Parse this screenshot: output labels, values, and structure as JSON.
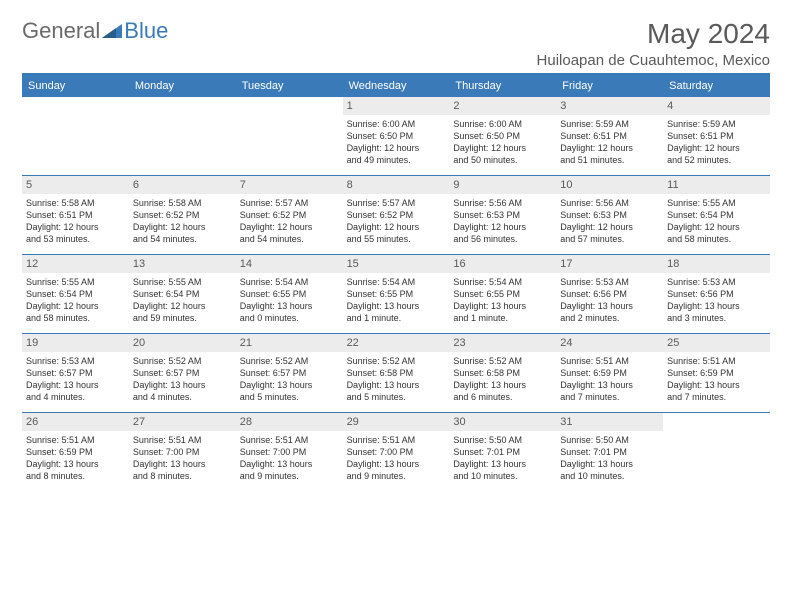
{
  "logo": {
    "text1": "General",
    "text2": "Blue"
  },
  "title": "May 2024",
  "location": "Huiloapan de Cuauhtemoc, Mexico",
  "colors": {
    "header_bg": "#3a7ab8",
    "header_text": "#ffffff",
    "daynum_bg": "#ececec",
    "text": "#333333",
    "rule": "#3a7ab8"
  },
  "day_labels": [
    "Sunday",
    "Monday",
    "Tuesday",
    "Wednesday",
    "Thursday",
    "Friday",
    "Saturday"
  ],
  "weeks": [
    [
      {
        "n": "",
        "sr": "",
        "ss": "",
        "dl1": "",
        "dl2": ""
      },
      {
        "n": "",
        "sr": "",
        "ss": "",
        "dl1": "",
        "dl2": ""
      },
      {
        "n": "",
        "sr": "",
        "ss": "",
        "dl1": "",
        "dl2": ""
      },
      {
        "n": "1",
        "sr": "Sunrise: 6:00 AM",
        "ss": "Sunset: 6:50 PM",
        "dl1": "Daylight: 12 hours",
        "dl2": "and 49 minutes."
      },
      {
        "n": "2",
        "sr": "Sunrise: 6:00 AM",
        "ss": "Sunset: 6:50 PM",
        "dl1": "Daylight: 12 hours",
        "dl2": "and 50 minutes."
      },
      {
        "n": "3",
        "sr": "Sunrise: 5:59 AM",
        "ss": "Sunset: 6:51 PM",
        "dl1": "Daylight: 12 hours",
        "dl2": "and 51 minutes."
      },
      {
        "n": "4",
        "sr": "Sunrise: 5:59 AM",
        "ss": "Sunset: 6:51 PM",
        "dl1": "Daylight: 12 hours",
        "dl2": "and 52 minutes."
      }
    ],
    [
      {
        "n": "5",
        "sr": "Sunrise: 5:58 AM",
        "ss": "Sunset: 6:51 PM",
        "dl1": "Daylight: 12 hours",
        "dl2": "and 53 minutes."
      },
      {
        "n": "6",
        "sr": "Sunrise: 5:58 AM",
        "ss": "Sunset: 6:52 PM",
        "dl1": "Daylight: 12 hours",
        "dl2": "and 54 minutes."
      },
      {
        "n": "7",
        "sr": "Sunrise: 5:57 AM",
        "ss": "Sunset: 6:52 PM",
        "dl1": "Daylight: 12 hours",
        "dl2": "and 54 minutes."
      },
      {
        "n": "8",
        "sr": "Sunrise: 5:57 AM",
        "ss": "Sunset: 6:52 PM",
        "dl1": "Daylight: 12 hours",
        "dl2": "and 55 minutes."
      },
      {
        "n": "9",
        "sr": "Sunrise: 5:56 AM",
        "ss": "Sunset: 6:53 PM",
        "dl1": "Daylight: 12 hours",
        "dl2": "and 56 minutes."
      },
      {
        "n": "10",
        "sr": "Sunrise: 5:56 AM",
        "ss": "Sunset: 6:53 PM",
        "dl1": "Daylight: 12 hours",
        "dl2": "and 57 minutes."
      },
      {
        "n": "11",
        "sr": "Sunrise: 5:55 AM",
        "ss": "Sunset: 6:54 PM",
        "dl1": "Daylight: 12 hours",
        "dl2": "and 58 minutes."
      }
    ],
    [
      {
        "n": "12",
        "sr": "Sunrise: 5:55 AM",
        "ss": "Sunset: 6:54 PM",
        "dl1": "Daylight: 12 hours",
        "dl2": "and 58 minutes."
      },
      {
        "n": "13",
        "sr": "Sunrise: 5:55 AM",
        "ss": "Sunset: 6:54 PM",
        "dl1": "Daylight: 12 hours",
        "dl2": "and 59 minutes."
      },
      {
        "n": "14",
        "sr": "Sunrise: 5:54 AM",
        "ss": "Sunset: 6:55 PM",
        "dl1": "Daylight: 13 hours",
        "dl2": "and 0 minutes."
      },
      {
        "n": "15",
        "sr": "Sunrise: 5:54 AM",
        "ss": "Sunset: 6:55 PM",
        "dl1": "Daylight: 13 hours",
        "dl2": "and 1 minute."
      },
      {
        "n": "16",
        "sr": "Sunrise: 5:54 AM",
        "ss": "Sunset: 6:55 PM",
        "dl1": "Daylight: 13 hours",
        "dl2": "and 1 minute."
      },
      {
        "n": "17",
        "sr": "Sunrise: 5:53 AM",
        "ss": "Sunset: 6:56 PM",
        "dl1": "Daylight: 13 hours",
        "dl2": "and 2 minutes."
      },
      {
        "n": "18",
        "sr": "Sunrise: 5:53 AM",
        "ss": "Sunset: 6:56 PM",
        "dl1": "Daylight: 13 hours",
        "dl2": "and 3 minutes."
      }
    ],
    [
      {
        "n": "19",
        "sr": "Sunrise: 5:53 AM",
        "ss": "Sunset: 6:57 PM",
        "dl1": "Daylight: 13 hours",
        "dl2": "and 4 minutes."
      },
      {
        "n": "20",
        "sr": "Sunrise: 5:52 AM",
        "ss": "Sunset: 6:57 PM",
        "dl1": "Daylight: 13 hours",
        "dl2": "and 4 minutes."
      },
      {
        "n": "21",
        "sr": "Sunrise: 5:52 AM",
        "ss": "Sunset: 6:57 PM",
        "dl1": "Daylight: 13 hours",
        "dl2": "and 5 minutes."
      },
      {
        "n": "22",
        "sr": "Sunrise: 5:52 AM",
        "ss": "Sunset: 6:58 PM",
        "dl1": "Daylight: 13 hours",
        "dl2": "and 5 minutes."
      },
      {
        "n": "23",
        "sr": "Sunrise: 5:52 AM",
        "ss": "Sunset: 6:58 PM",
        "dl1": "Daylight: 13 hours",
        "dl2": "and 6 minutes."
      },
      {
        "n": "24",
        "sr": "Sunrise: 5:51 AM",
        "ss": "Sunset: 6:59 PM",
        "dl1": "Daylight: 13 hours",
        "dl2": "and 7 minutes."
      },
      {
        "n": "25",
        "sr": "Sunrise: 5:51 AM",
        "ss": "Sunset: 6:59 PM",
        "dl1": "Daylight: 13 hours",
        "dl2": "and 7 minutes."
      }
    ],
    [
      {
        "n": "26",
        "sr": "Sunrise: 5:51 AM",
        "ss": "Sunset: 6:59 PM",
        "dl1": "Daylight: 13 hours",
        "dl2": "and 8 minutes."
      },
      {
        "n": "27",
        "sr": "Sunrise: 5:51 AM",
        "ss": "Sunset: 7:00 PM",
        "dl1": "Daylight: 13 hours",
        "dl2": "and 8 minutes."
      },
      {
        "n": "28",
        "sr": "Sunrise: 5:51 AM",
        "ss": "Sunset: 7:00 PM",
        "dl1": "Daylight: 13 hours",
        "dl2": "and 9 minutes."
      },
      {
        "n": "29",
        "sr": "Sunrise: 5:51 AM",
        "ss": "Sunset: 7:00 PM",
        "dl1": "Daylight: 13 hours",
        "dl2": "and 9 minutes."
      },
      {
        "n": "30",
        "sr": "Sunrise: 5:50 AM",
        "ss": "Sunset: 7:01 PM",
        "dl1": "Daylight: 13 hours",
        "dl2": "and 10 minutes."
      },
      {
        "n": "31",
        "sr": "Sunrise: 5:50 AM",
        "ss": "Sunset: 7:01 PM",
        "dl1": "Daylight: 13 hours",
        "dl2": "and 10 minutes."
      },
      {
        "n": "",
        "sr": "",
        "ss": "",
        "dl1": "",
        "dl2": ""
      }
    ]
  ]
}
